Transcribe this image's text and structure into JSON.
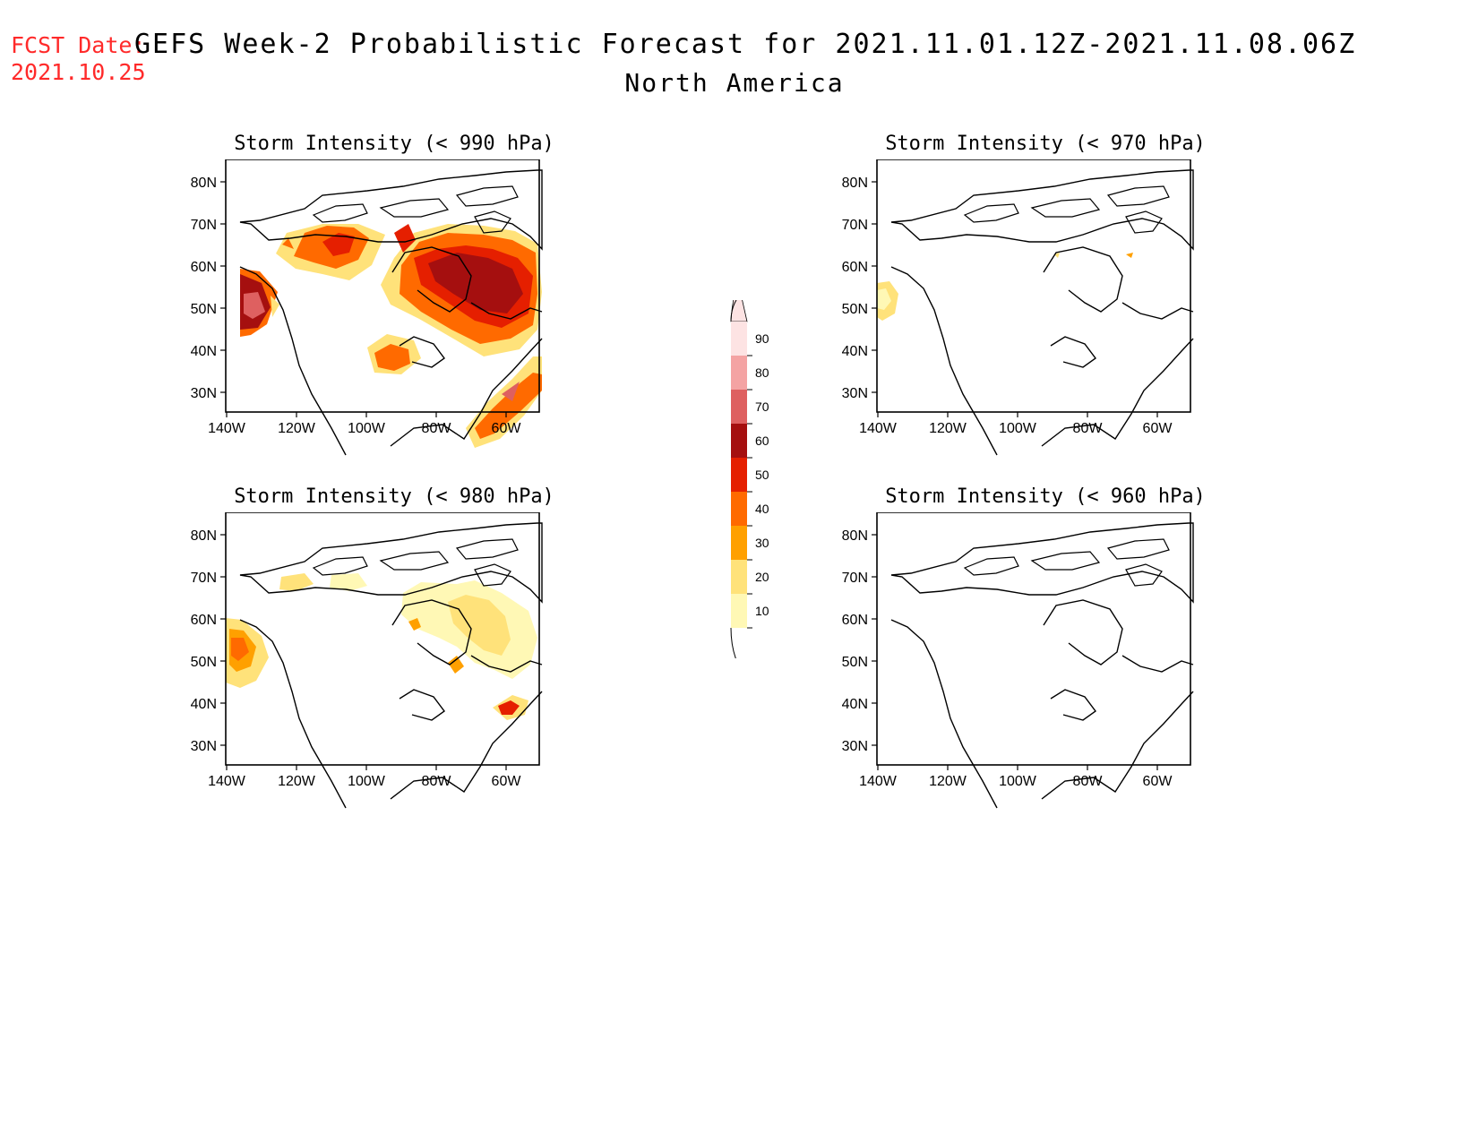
{
  "header": {
    "fcst_label": "FCST Date:",
    "fcst_date": "2021.10.25",
    "title": "GEFS Week-2 Probabilistic Forecast for 2021.11.01.12Z-2021.11.08.06Z",
    "subtitle": "North America"
  },
  "map_axes": {
    "lat_labels": [
      "80N",
      "70N",
      "60N",
      "50N",
      "40N",
      "30N"
    ],
    "lon_labels": [
      "140W",
      "120W",
      "100W",
      "80W",
      "60W"
    ]
  },
  "panels": [
    {
      "title": "Storm Intensity (< 990 hPa)",
      "intensity": "high"
    },
    {
      "title": "Storm Intensity (< 970 hPa)",
      "intensity": "minimal"
    },
    {
      "title": "Storm Intensity (< 980 hPa)",
      "intensity": "low"
    },
    {
      "title": "Storm Intensity (< 960 hPa)",
      "intensity": "none"
    }
  ],
  "colorbar": {
    "labels": [
      "90",
      "80",
      "70",
      "60",
      "50",
      "40",
      "30",
      "20",
      "10"
    ],
    "colors": [
      "#fde3e3",
      "#f4a3a3",
      "#de6060",
      "#a50f0f",
      "#e51f00",
      "#ff6a00",
      "#ffa000",
      "#ffe27a",
      "#fff8b5"
    ]
  }
}
